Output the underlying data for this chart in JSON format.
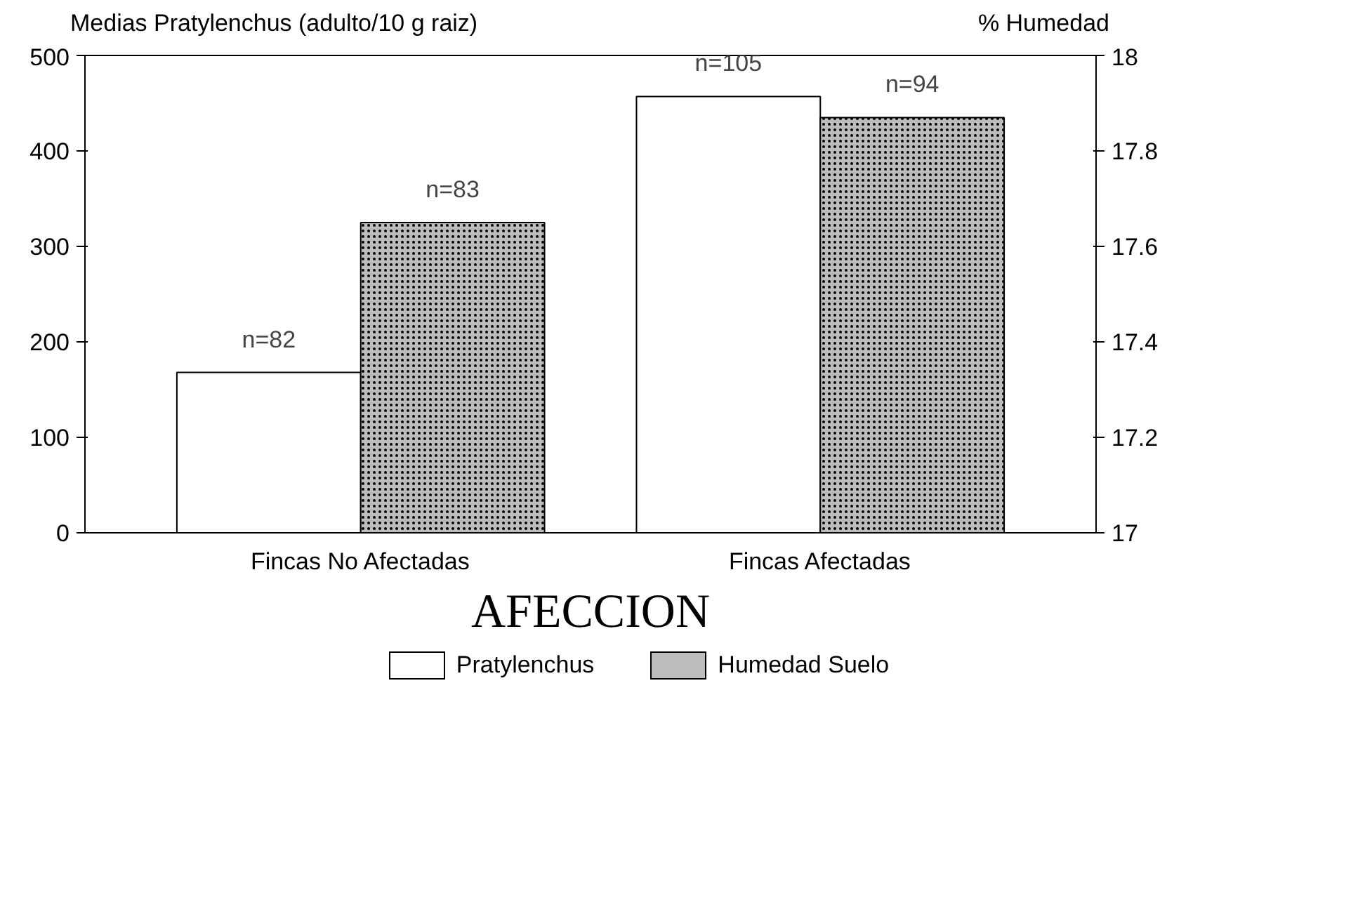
{
  "chart_data": {
    "type": "bar",
    "categories": [
      "Fincas No Afectadas",
      "Fincas Afectadas"
    ],
    "series": [
      {
        "name": "Pratylenchus",
        "color": "#ffffff",
        "values": [
          168,
          457
        ]
      },
      {
        "name": "Humedad Suelo",
        "color": "#bdbdbd",
        "values": [
          17.65,
          17.87
        ],
        "axis": "y2"
      }
    ],
    "annotations": [
      "n=82",
      "n=105",
      "n=83",
      "n=94"
    ],
    "ylabel": "Medias Pratylenchus (adulto/10 g raiz)",
    "y2label": "% Humedad",
    "xlabel": "AFECCION",
    "ylim": [
      0,
      500
    ],
    "yticks": [
      0,
      100,
      200,
      300,
      400,
      500
    ],
    "y2lim": [
      17,
      18
    ],
    "y2ticks": [
      17,
      17.2,
      17.4,
      17.6,
      17.8,
      18
    ],
    "grid": false,
    "legend": "bottom"
  }
}
